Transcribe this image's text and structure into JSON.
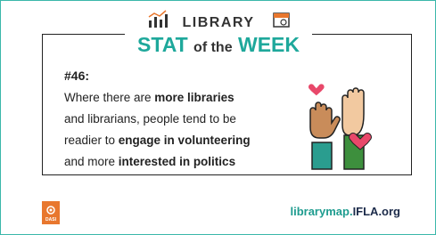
{
  "header": {
    "title": "LIBRARY",
    "subtitle": [
      {
        "text": "STAT"
      },
      {
        "text": "of the"
      },
      {
        "text": "WEEK"
      }
    ]
  },
  "body": {
    "number": "#46:",
    "lines": [
      [
        {
          "text": "Where there are ",
          "bold": false
        },
        {
          "text": "more libraries",
          "bold": true
        }
      ],
      [
        {
          "text": "and librarians, people tend to be",
          "bold": false
        }
      ],
      [
        {
          "text": "readier to ",
          "bold": false
        },
        {
          "text": "engage in volunteering",
          "bold": true
        }
      ],
      [
        {
          "text": "and more ",
          "bold": false
        },
        {
          "text": "interested in politics",
          "bold": true
        }
      ]
    ]
  },
  "footer": {
    "logo": "DASI",
    "url": [
      {
        "text": "librarymap."
      },
      {
        "text": "IFLA.org"
      }
    ]
  }
}
